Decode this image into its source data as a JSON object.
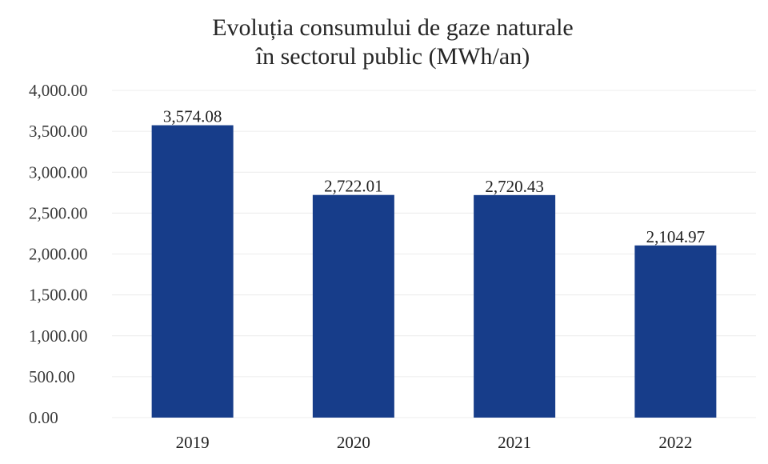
{
  "chart_data": {
    "type": "bar",
    "title": [
      "Evoluția consumului de gaze naturale",
      "în sectorul public (MWh/an)"
    ],
    "categories": [
      "2019",
      "2020",
      "2021",
      "2022"
    ],
    "values": [
      3574.08,
      2722.01,
      2720.43,
      2104.97
    ],
    "data_labels": [
      "3,574.08",
      "2,722.01",
      "2,720.43",
      "2,104.97"
    ],
    "yticks": [
      0,
      500,
      1000,
      1500,
      2000,
      2500,
      3000,
      3500,
      4000
    ],
    "ytick_labels": [
      "0.00",
      "500.00",
      "1,000.00",
      "1,500.00",
      "2,000.00",
      "2,500.00",
      "3,000.00",
      "3,500.00",
      "4,000.00"
    ],
    "ylim": [
      0,
      4000
    ],
    "grid": true,
    "legend": false,
    "bar_color": "#173D8A"
  }
}
